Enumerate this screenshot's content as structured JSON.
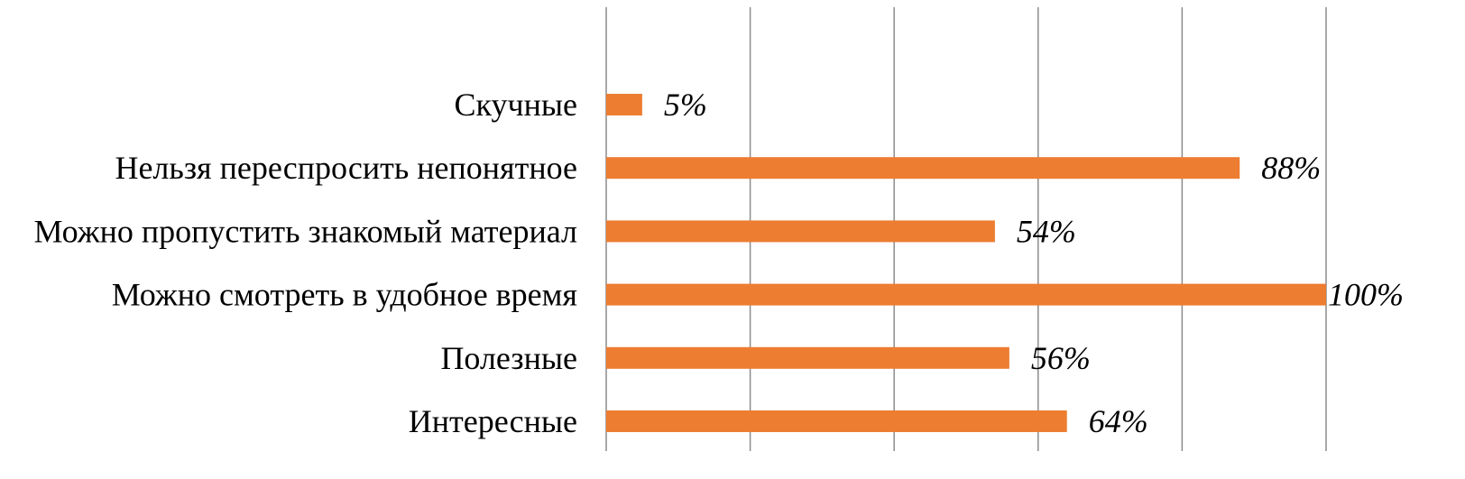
{
  "chart_data": {
    "type": "bar",
    "orientation": "horizontal",
    "title": "",
    "xlabel": "",
    "ylabel": "",
    "categories": [
      "Скучные",
      "Нельзя переспросить непонятное",
      "Можно пропустить знакомый материал",
      "Можно смотреть в удобное время",
      "Полезные",
      "Интересные"
    ],
    "values": [
      5,
      88,
      54,
      100,
      56,
      64
    ],
    "value_labels": [
      "5%",
      "88%",
      "54%",
      "100%",
      "56%",
      "64%"
    ],
    "unit": "%",
    "xlim": [
      0,
      100
    ],
    "grid": true,
    "tick_labels_shown": false,
    "legend": "none",
    "bar_color": "#ED7D31",
    "grid_color": "#8C8C8C"
  }
}
